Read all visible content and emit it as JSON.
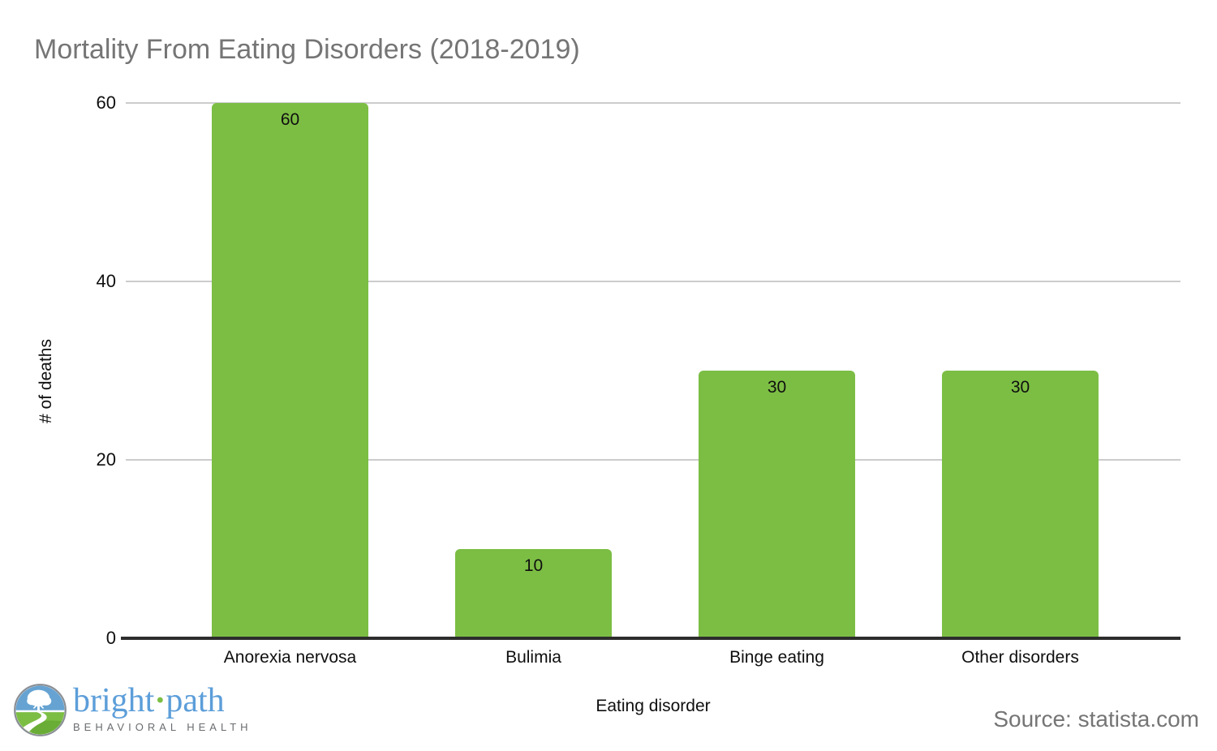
{
  "chart_data": {
    "type": "bar",
    "title": "Mortality From Eating Disorders (2018-2019)",
    "categories": [
      "Anorexia nervosa",
      "Bulimia",
      "Binge eating",
      "Other disorders"
    ],
    "values": [
      60,
      10,
      30,
      30
    ],
    "xlabel": "Eating disorder",
    "ylabel": "# of deaths",
    "ylim": [
      0,
      60
    ],
    "yticks": [
      0,
      20,
      40,
      60
    ],
    "grid": true,
    "legend": "none",
    "bar_color": "#7cbe44",
    "value_labels_shown": true
  },
  "footer": {
    "brand": {
      "word1": "bright",
      "dot": "·",
      "word2": "path",
      "tagline": "BEHAVIORAL HEALTH"
    },
    "source": "Source: statista.com"
  },
  "colors": {
    "bar_green": "#7cbe44",
    "title_gray": "#757575",
    "gridline_gray": "#cccccc",
    "axis_line_dark": "#2d2d2d",
    "brand_blue": "#5c9ed9",
    "brand_dot_green": "#7cbe44",
    "logo_sky_blue": "#66a3d2",
    "tagline_gray": "#6b6d70"
  }
}
